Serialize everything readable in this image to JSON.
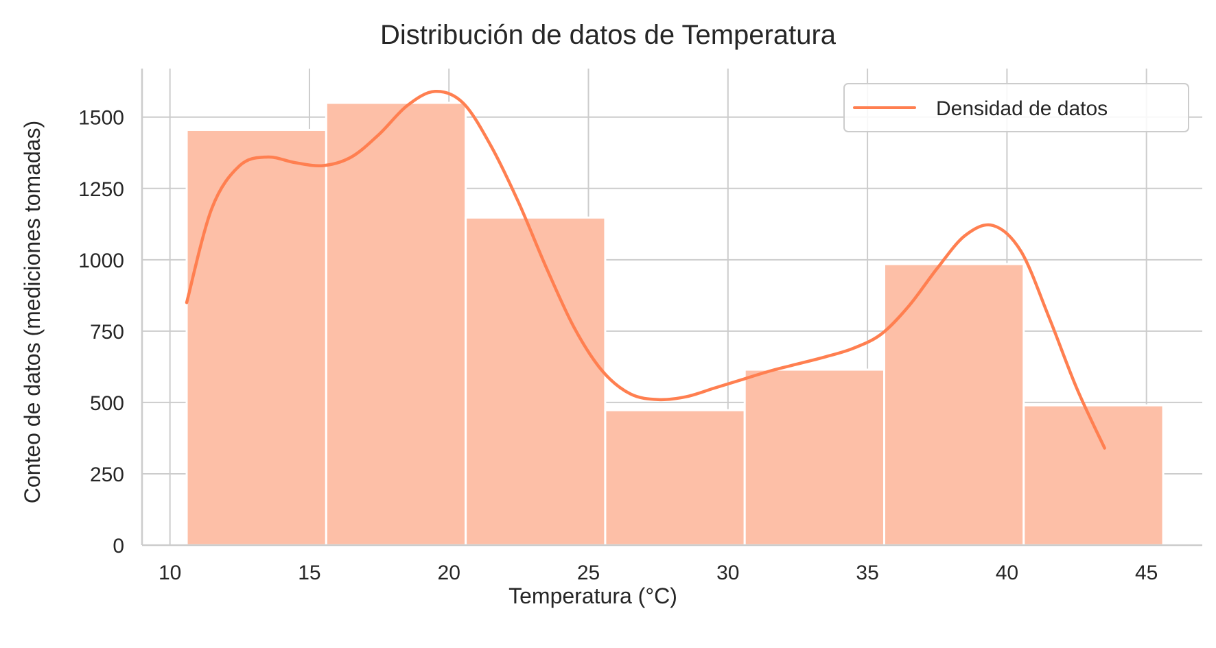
{
  "chart_data": {
    "type": "bar",
    "title": "Distribución de datos de Temperatura",
    "xlabel": "Temperatura (°C)",
    "ylabel": "Conteo de datos (mediciones tomadas)",
    "xlim": [
      9,
      47
    ],
    "ylim": [
      0,
      1670
    ],
    "xticks": [
      10,
      15,
      20,
      25,
      30,
      35,
      40,
      45
    ],
    "yticks": [
      0,
      250,
      500,
      750,
      1000,
      1250,
      1500
    ],
    "grid": true,
    "legend_position": "top-right",
    "colors": {
      "bar": "#fdbfa7",
      "line": "#ff7f50",
      "grid": "#cccccc",
      "text": "#262626"
    },
    "bins": [
      {
        "x0": 10.6,
        "x1": 15.6,
        "count": 1455
      },
      {
        "x0": 15.6,
        "x1": 20.6,
        "count": 1550
      },
      {
        "x0": 20.6,
        "x1": 25.6,
        "count": 1148
      },
      {
        "x0": 25.6,
        "x1": 30.6,
        "count": 473
      },
      {
        "x0": 30.6,
        "x1": 35.6,
        "count": 615
      },
      {
        "x0": 35.6,
        "x1": 40.6,
        "count": 985
      },
      {
        "x0": 40.6,
        "x1": 45.6,
        "count": 490
      }
    ],
    "series": [
      {
        "name": "Densidad de datos",
        "type": "line",
        "x": [
          10.6,
          11.5,
          12.5,
          13.5,
          14.5,
          15.5,
          16.5,
          17.5,
          18.5,
          19.5,
          20.5,
          21.5,
          22.5,
          23.5,
          24.5,
          25.5,
          26.5,
          27.5,
          28.5,
          29.5,
          30.5,
          31.5,
          32.5,
          33.5,
          34.5,
          35.5,
          36.5,
          37.5,
          38.5,
          39.5,
          40.5,
          41.5,
          42.5,
          43.5
        ],
        "y": [
          850,
          1180,
          1330,
          1360,
          1340,
          1330,
          1360,
          1440,
          1540,
          1590,
          1550,
          1400,
          1200,
          970,
          760,
          610,
          530,
          510,
          520,
          550,
          580,
          610,
          635,
          660,
          690,
          740,
          840,
          970,
          1085,
          1120,
          1030,
          800,
          550,
          340
        ]
      }
    ]
  }
}
